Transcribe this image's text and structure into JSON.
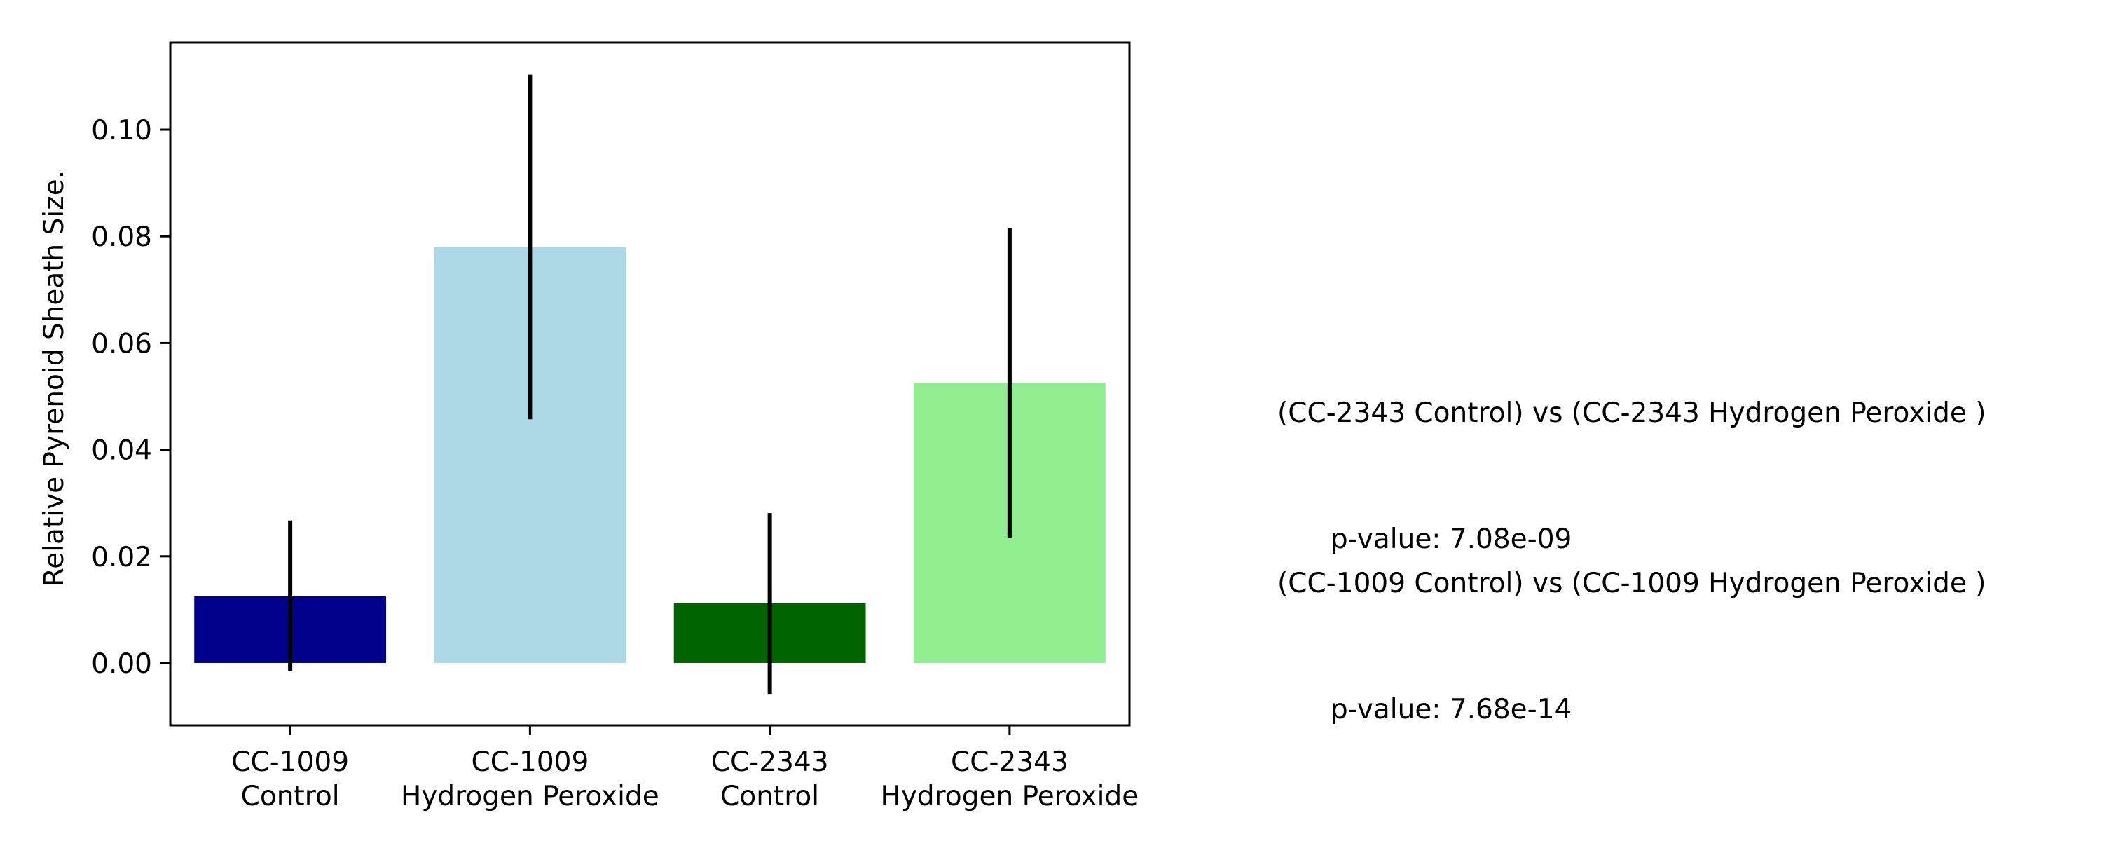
{
  "chart_data": {
    "type": "bar",
    "categories": [
      [
        "CC-1009",
        "Control"
      ],
      [
        "CC-1009",
        "Hydrogen Peroxide"
      ],
      [
        "CC-2343",
        "Control"
      ],
      [
        "CC-2343",
        "Hydrogen Peroxide"
      ]
    ],
    "values": [
      0.0125,
      0.078,
      0.0112,
      0.0525
    ],
    "error_bars": [
      [
        -0.0015,
        0.0267
      ],
      [
        0.0457,
        0.1103
      ],
      [
        -0.0058,
        0.0281
      ],
      [
        0.0235,
        0.0815
      ]
    ],
    "colors": [
      "#00008b",
      "#add8e6",
      "#006400",
      "#90ee90"
    ],
    "error_color": "#000000",
    "ylabel": "Relative Pyrenoid Sheath Size.",
    "xlabel": "",
    "title": "",
    "ylim": [
      -0.0117,
      0.1163
    ],
    "yticks": [
      0.0,
      0.02,
      0.04,
      0.06,
      0.08,
      0.1
    ],
    "ytick_labels": [
      "0.00",
      "0.02",
      "0.04",
      "0.06",
      "0.08",
      "0.10"
    ],
    "grid": false
  },
  "annotations": [
    {
      "comparison": "(CC-2343 Control) vs (CC-2343 Hydrogen Peroxide )",
      "pvalue": "p-value: 7.08e-09"
    },
    {
      "comparison": "(CC-1009 Control) vs (CC-1009 Hydrogen Peroxide )",
      "pvalue": "p-value: 7.68e-14"
    }
  ]
}
